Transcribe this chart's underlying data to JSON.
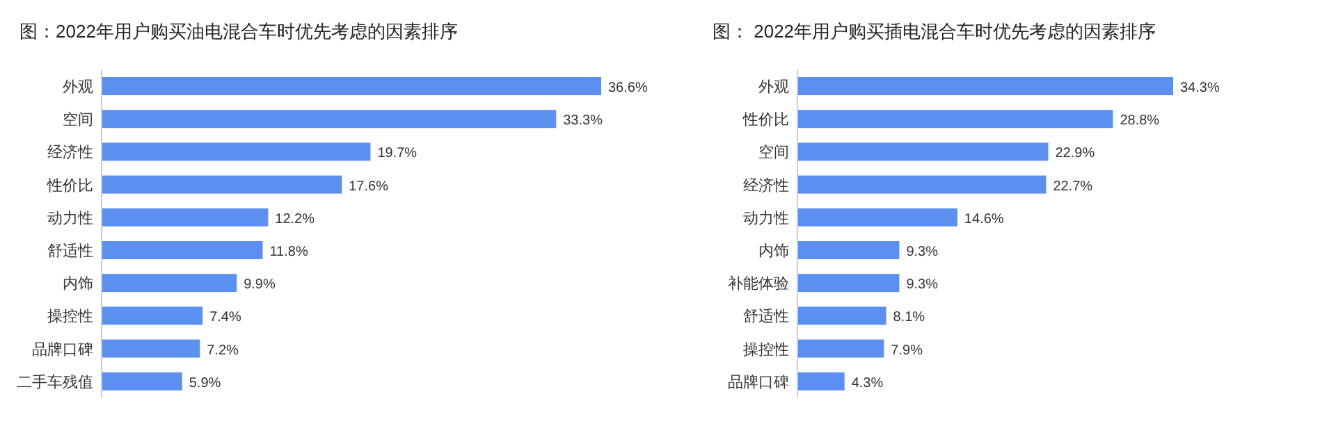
{
  "chart_data": [
    {
      "type": "bar",
      "orientation": "horizontal",
      "title": "图：2022年用户购买油电混合车时优先考虑的因素排序",
      "color": "#5b8ff0",
      "categories": [
        "外观",
        "空间",
        "经济性",
        "性价比",
        "动力性",
        "舒适性",
        "内饰",
        "操控性",
        "品牌口碑",
        "二手车残值"
      ],
      "values": [
        36.6,
        33.3,
        19.7,
        17.6,
        12.2,
        11.8,
        9.9,
        7.4,
        7.2,
        5.9
      ],
      "value_labels": [
        "36.6%",
        "33.3%",
        "19.7%",
        "17.6%",
        "12.2%",
        "11.8%",
        "9.9%",
        "7.4%",
        "7.2%",
        "5.9%"
      ]
    },
    {
      "type": "bar",
      "orientation": "horizontal",
      "title": "图：  2022年用户购买插电混合车时优先考虑的因素排序",
      "color": "#5b8ff0",
      "categories": [
        "外观",
        "性价比",
        "空间",
        "经济性",
        "动力性",
        "内饰",
        "补能体验",
        "舒适性",
        "操控性",
        "品牌口碑"
      ],
      "values": [
        34.3,
        28.8,
        22.9,
        22.7,
        14.6,
        9.3,
        9.3,
        8.1,
        7.9,
        4.3
      ],
      "value_labels": [
        "34.3%",
        "28.8%",
        "22.9%",
        "22.7%",
        "14.6%",
        "9.3%",
        "9.3%",
        "8.1%",
        "7.9%",
        "4.3%"
      ]
    }
  ]
}
